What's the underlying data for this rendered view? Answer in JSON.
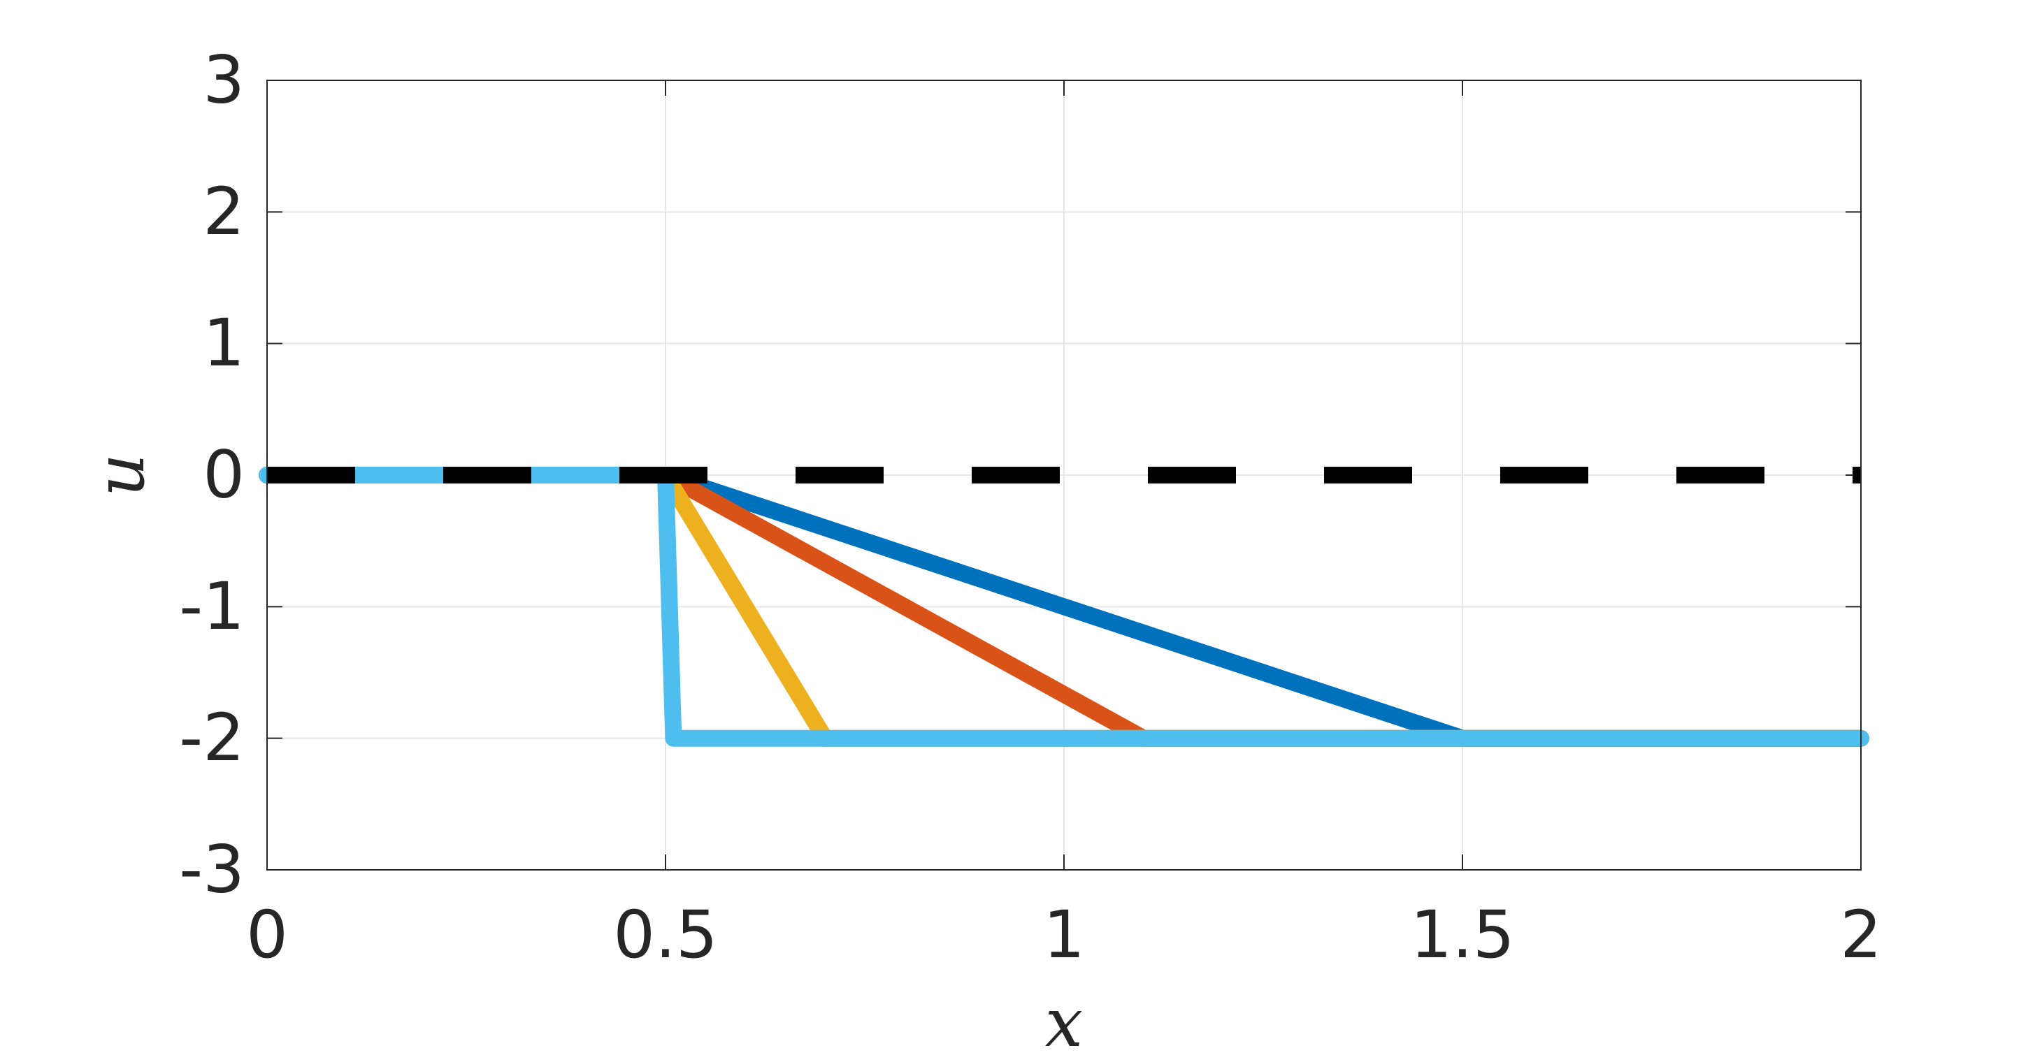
{
  "chart_data": {
    "type": "line",
    "title": "",
    "xlabel": "x",
    "ylabel": "u",
    "xlim": [
      0,
      2
    ],
    "ylim": [
      -3,
      3
    ],
    "xticks": [
      0,
      0.5,
      1,
      1.5,
      2
    ],
    "xtick_labels": [
      "0",
      "0.5",
      "1",
      "1.5",
      "2"
    ],
    "yticks": [
      -3,
      -2,
      -1,
      0,
      1,
      2,
      3
    ],
    "ytick_labels": [
      "-3",
      "-2",
      "-1",
      "0",
      "1",
      "2",
      "3"
    ],
    "grid": true,
    "series": [
      {
        "color": "#0072BD",
        "style": "solid",
        "x": [
          0,
          0.5,
          1.5,
          2
        ],
        "y": [
          0,
          0,
          -2,
          -2
        ]
      },
      {
        "color": "#D95319",
        "style": "solid",
        "x": [
          0,
          0.5,
          1.1,
          2
        ],
        "y": [
          0,
          0,
          -2,
          -2
        ]
      },
      {
        "color": "#EDB120",
        "style": "solid",
        "x": [
          0,
          0.5,
          0.7,
          2
        ],
        "y": [
          0,
          0,
          -2,
          -2
        ]
      },
      {
        "color": "#4DBEEE",
        "style": "solid",
        "x": [
          0,
          0.5,
          0.51,
          2
        ],
        "y": [
          0,
          0,
          -2,
          -2
        ]
      },
      {
        "color": "#000000",
        "style": "dashed",
        "x": [
          0,
          2
        ],
        "y": [
          0,
          0
        ]
      }
    ]
  }
}
